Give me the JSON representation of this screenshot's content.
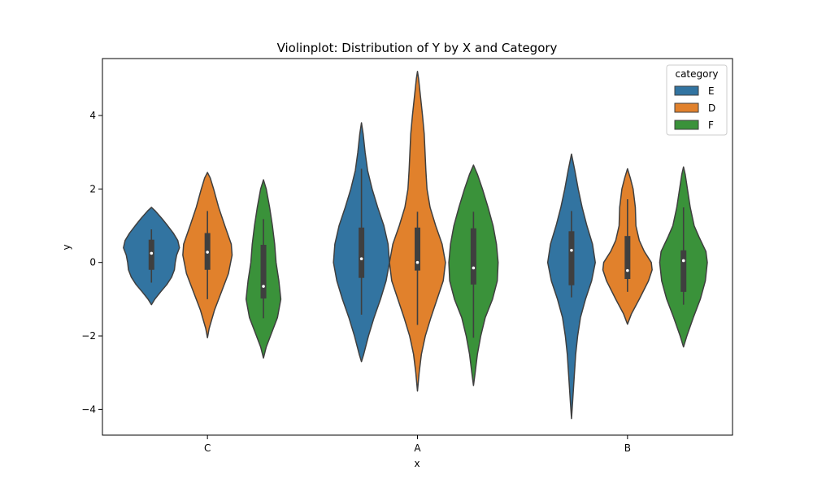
{
  "chart_data": {
    "type": "violin",
    "title": "Violinplot: Distribution of Y by X and Category",
    "xlabel": "x",
    "ylabel": "y",
    "categories": [
      "C",
      "A",
      "B"
    ],
    "ylim": [
      -4.7,
      5.55
    ],
    "yticks": [
      {
        "value": -4,
        "label": "−4"
      },
      {
        "value": -2,
        "label": "−2"
      },
      {
        "value": 0,
        "label": "0"
      },
      {
        "value": 2,
        "label": "2"
      },
      {
        "value": 4,
        "label": "4"
      }
    ],
    "grid": false,
    "legend": {
      "title": "category",
      "placement": "top-right"
    },
    "series": [
      {
        "name": "E",
        "color": "#3274a1",
        "violins": [
          {
            "category": "C",
            "min": -1.15,
            "max": 1.5,
            "q1": -0.2,
            "median": 0.25,
            "q3": 0.62,
            "whisker_low": -0.55,
            "whisker_high": 0.9,
            "profile": [
              [
                -1.15,
                0
              ],
              [
                -1.0,
                0.12
              ],
              [
                -0.8,
                0.33
              ],
              [
                -0.6,
                0.55
              ],
              [
                -0.4,
                0.72
              ],
              [
                -0.2,
                0.82
              ],
              [
                0.0,
                0.85
              ],
              [
                0.2,
                0.9
              ],
              [
                0.4,
                1.0
              ],
              [
                0.6,
                0.94
              ],
              [
                0.8,
                0.78
              ],
              [
                1.0,
                0.58
              ],
              [
                1.2,
                0.37
              ],
              [
                1.4,
                0.14
              ],
              [
                1.5,
                0
              ]
            ]
          },
          {
            "category": "A",
            "min": -2.7,
            "max": 3.8,
            "q1": -0.42,
            "median": 0.1,
            "q3": 0.95,
            "whisker_low": -1.42,
            "whisker_high": 2.55,
            "profile": [
              [
                -2.7,
                0
              ],
              [
                -2.5,
                0.08
              ],
              [
                -2.0,
                0.25
              ],
              [
                -1.5,
                0.45
              ],
              [
                -1.0,
                0.68
              ],
              [
                -0.5,
                0.88
              ],
              [
                0.0,
                1.0
              ],
              [
                0.5,
                0.95
              ],
              [
                1.0,
                0.8
              ],
              [
                1.5,
                0.58
              ],
              [
                2.0,
                0.38
              ],
              [
                2.5,
                0.22
              ],
              [
                3.0,
                0.13
              ],
              [
                3.5,
                0.06
              ],
              [
                3.8,
                0
              ]
            ]
          },
          {
            "category": "B",
            "min": -4.25,
            "max": 2.95,
            "q1": -0.62,
            "median": 0.33,
            "q3": 0.85,
            "whisker_low": -0.95,
            "whisker_high": 1.4,
            "profile": [
              [
                -4.25,
                0
              ],
              [
                -3.8,
                0.04
              ],
              [
                -3.2,
                0.09
              ],
              [
                -2.5,
                0.15
              ],
              [
                -2.0,
                0.22
              ],
              [
                -1.5,
                0.32
              ],
              [
                -1.0,
                0.5
              ],
              [
                -0.5,
                0.72
              ],
              [
                0.0,
                0.85
              ],
              [
                0.5,
                0.75
              ],
              [
                1.0,
                0.55
              ],
              [
                1.5,
                0.38
              ],
              [
                2.0,
                0.24
              ],
              [
                2.5,
                0.12
              ],
              [
                2.95,
                0
              ]
            ]
          }
        ]
      },
      {
        "name": "D",
        "color": "#e1812c",
        "violins": [
          {
            "category": "C",
            "min": -2.05,
            "max": 2.45,
            "q1": -0.2,
            "median": 0.28,
            "q3": 0.8,
            "whisker_low": -1.0,
            "whisker_high": 1.4,
            "profile": [
              [
                -2.05,
                0
              ],
              [
                -1.8,
                0.06
              ],
              [
                -1.3,
                0.25
              ],
              [
                -0.8,
                0.5
              ],
              [
                -0.3,
                0.75
              ],
              [
                0.2,
                0.88
              ],
              [
                0.5,
                0.85
              ],
              [
                1.0,
                0.62
              ],
              [
                1.5,
                0.4
              ],
              [
                2.0,
                0.22
              ],
              [
                2.3,
                0.1
              ],
              [
                2.45,
                0
              ]
            ]
          },
          {
            "category": "A",
            "min": -3.5,
            "max": 5.2,
            "q1": -0.22,
            "median": 0.0,
            "q3": 0.95,
            "whisker_low": -1.7,
            "whisker_high": 1.38,
            "profile": [
              [
                -3.5,
                0
              ],
              [
                -3.0,
                0.06
              ],
              [
                -2.5,
                0.14
              ],
              [
                -2.0,
                0.28
              ],
              [
                -1.5,
                0.48
              ],
              [
                -1.0,
                0.7
              ],
              [
                -0.5,
                0.92
              ],
              [
                0.0,
                1.0
              ],
              [
                0.5,
                0.88
              ],
              [
                1.0,
                0.65
              ],
              [
                1.5,
                0.45
              ],
              [
                2.0,
                0.34
              ],
              [
                2.5,
                0.3
              ],
              [
                3.0,
                0.27
              ],
              [
                3.5,
                0.24
              ],
              [
                4.0,
                0.18
              ],
              [
                4.5,
                0.11
              ],
              [
                5.0,
                0.04
              ],
              [
                5.2,
                0
              ]
            ]
          },
          {
            "category": "B",
            "min": -1.68,
            "max": 2.55,
            "q1": -0.45,
            "median": -0.22,
            "q3": 0.72,
            "whisker_low": -0.8,
            "whisker_high": 1.72,
            "profile": [
              [
                -1.68,
                0
              ],
              [
                -1.4,
                0.14
              ],
              [
                -1.0,
                0.42
              ],
              [
                -0.5,
                0.75
              ],
              [
                -0.2,
                0.88
              ],
              [
                0.0,
                0.85
              ],
              [
                0.3,
                0.6
              ],
              [
                0.6,
                0.42
              ],
              [
                1.0,
                0.3
              ],
              [
                1.5,
                0.28
              ],
              [
                2.0,
                0.2
              ],
              [
                2.3,
                0.1
              ],
              [
                2.55,
                0
              ]
            ]
          }
        ]
      },
      {
        "name": "F",
        "color": "#3a923a",
        "violins": [
          {
            "category": "C",
            "min": -2.6,
            "max": 2.25,
            "q1": -0.98,
            "median": -0.65,
            "q3": 0.48,
            "whisker_low": -1.52,
            "whisker_high": 1.18,
            "profile": [
              [
                -2.6,
                0
              ],
              [
                -2.3,
                0.1
              ],
              [
                -2.0,
                0.25
              ],
              [
                -1.5,
                0.5
              ],
              [
                -1.0,
                0.62
              ],
              [
                -0.5,
                0.55
              ],
              [
                0.0,
                0.45
              ],
              [
                0.5,
                0.4
              ],
              [
                1.0,
                0.32
              ],
              [
                1.5,
                0.22
              ],
              [
                2.0,
                0.1
              ],
              [
                2.25,
                0
              ]
            ]
          },
          {
            "category": "A",
            "min": -3.35,
            "max": 2.65,
            "q1": -0.6,
            "median": -0.15,
            "q3": 0.93,
            "whisker_low": -2.05,
            "whisker_high": 1.38,
            "profile": [
              [
                -3.35,
                0
              ],
              [
                -3.0,
                0.06
              ],
              [
                -2.5,
                0.14
              ],
              [
                -2.0,
                0.26
              ],
              [
                -1.5,
                0.42
              ],
              [
                -1.0,
                0.68
              ],
              [
                -0.5,
                0.85
              ],
              [
                0.0,
                0.88
              ],
              [
                0.5,
                0.82
              ],
              [
                1.0,
                0.7
              ],
              [
                1.5,
                0.52
              ],
              [
                2.0,
                0.32
              ],
              [
                2.4,
                0.14
              ],
              [
                2.65,
                0
              ]
            ]
          },
          {
            "category": "B",
            "min": -2.3,
            "max": 2.6,
            "q1": -0.8,
            "median": 0.05,
            "q3": 0.33,
            "whisker_low": -1.15,
            "whisker_high": 1.5,
            "profile": [
              [
                -2.3,
                0
              ],
              [
                -2.0,
                0.12
              ],
              [
                -1.5,
                0.35
              ],
              [
                -1.0,
                0.6
              ],
              [
                -0.5,
                0.78
              ],
              [
                0.0,
                0.85
              ],
              [
                0.3,
                0.8
              ],
              [
                0.7,
                0.55
              ],
              [
                1.0,
                0.38
              ],
              [
                1.5,
                0.24
              ],
              [
                2.0,
                0.14
              ],
              [
                2.4,
                0.06
              ],
              [
                2.6,
                0
              ]
            ]
          }
        ]
      }
    ]
  }
}
